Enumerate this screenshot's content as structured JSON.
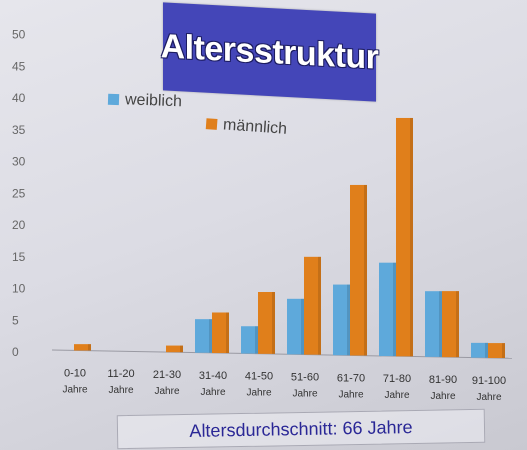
{
  "colors": {
    "female": "#5ea9db",
    "male": "#e07f1b",
    "title_bg": "#4446b8",
    "avg_text": "#2a2796"
  },
  "chart_data": {
    "type": "bar",
    "title": "Altersstruktur",
    "xlabel": "",
    "ylabel": "",
    "ylim": [
      0,
      50
    ],
    "yticks": [
      "0",
      "5",
      "10",
      "15",
      "20",
      "25",
      "30",
      "35",
      "40",
      "45",
      "50"
    ],
    "categories": [
      "0-10 Jahre",
      "11-20 Jahre",
      "21-30 Jahre",
      "31-40 Jahre",
      "41-50 Jahre",
      "51-60 Jahre",
      "61-70 Jahre",
      "71-80 Jahre",
      "81-90 Jahre",
      "91-100 Jahre"
    ],
    "category_lines": [
      [
        "0-10",
        "Jahre"
      ],
      [
        "11-20",
        "Jahre"
      ],
      [
        "21-30",
        "Jahre"
      ],
      [
        "31-40",
        "Jahre"
      ],
      [
        "41-50",
        "Jahre"
      ],
      [
        "51-60",
        "Jahre"
      ],
      [
        "61-70",
        "Jahre"
      ],
      [
        "71-80",
        "Jahre"
      ],
      [
        "81-90",
        "Jahre"
      ],
      [
        "91-100",
        "Jahre"
      ]
    ],
    "series": [
      {
        "name": "weiblich",
        "values": [
          0,
          0,
          0,
          5,
          4,
          8,
          10,
          13,
          9,
          2
        ]
      },
      {
        "name": "männlich",
        "values": [
          1,
          0,
          1,
          6,
          9,
          14,
          24,
          33,
          9,
          2
        ]
      }
    ],
    "legend": "top-left",
    "grid": false
  },
  "footer": {
    "average_text": "Altersdurchschnitt: 66 Jahre"
  }
}
